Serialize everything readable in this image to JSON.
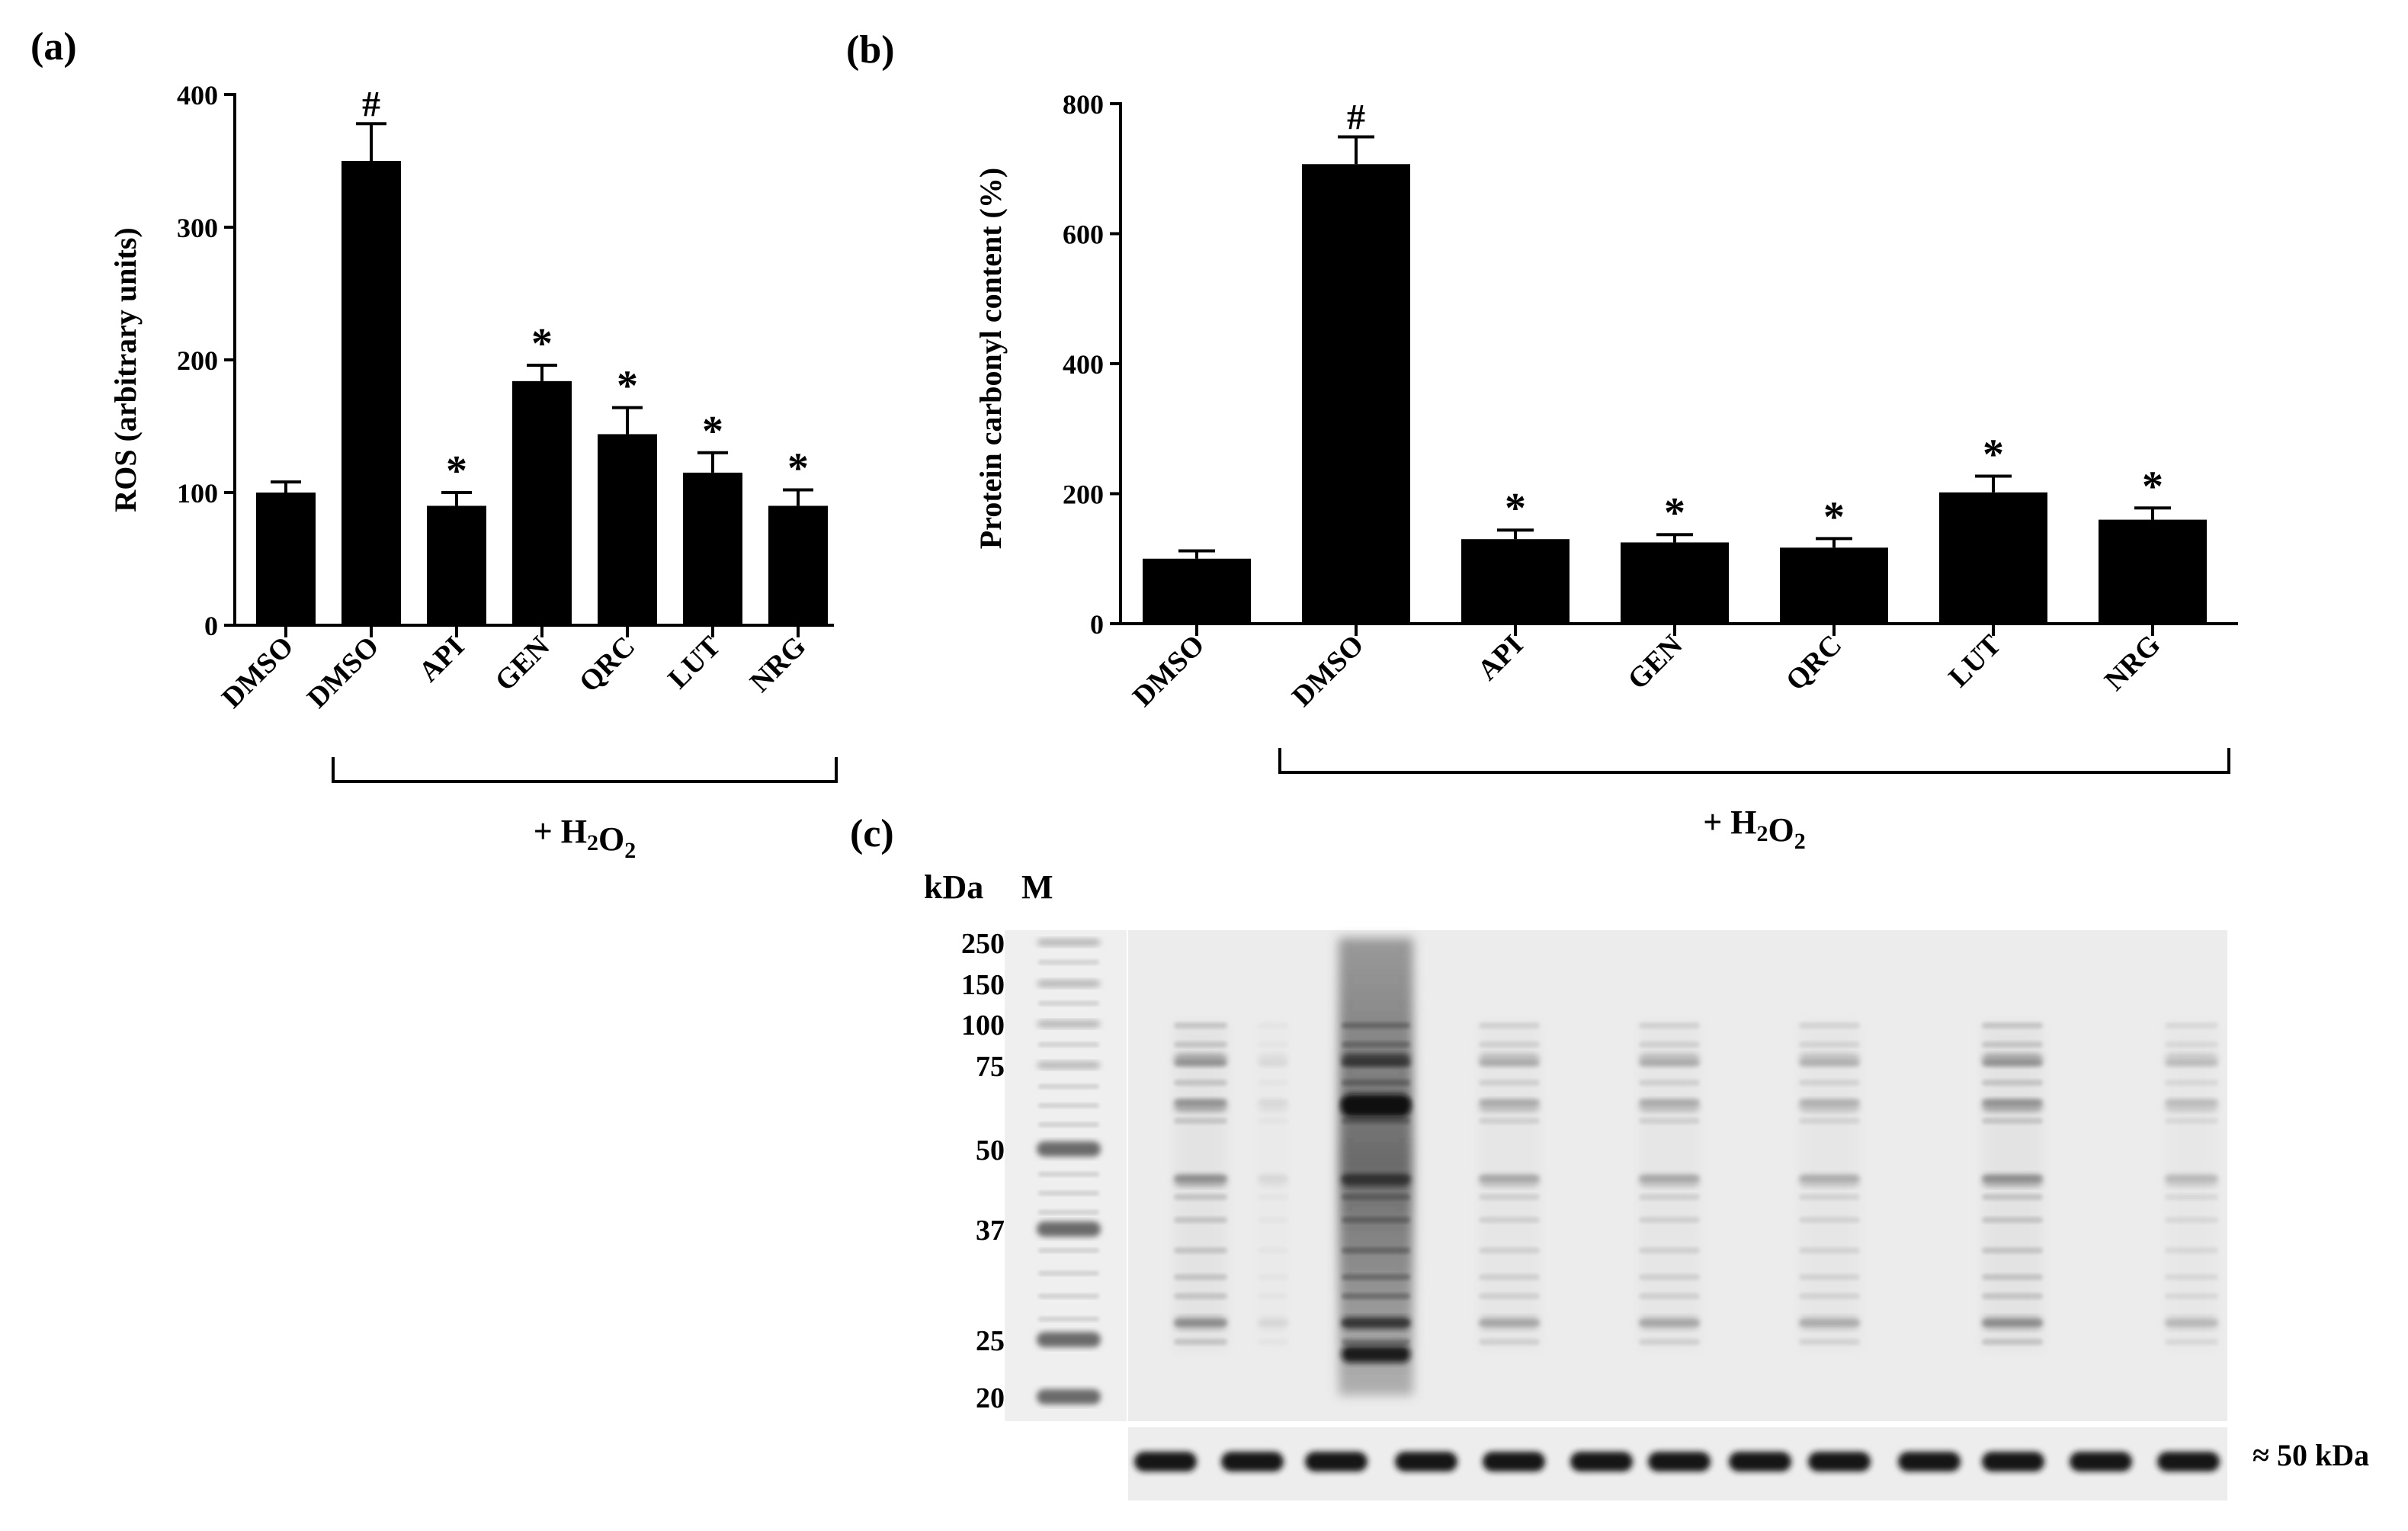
{
  "chart_data": [
    {
      "type": "bar",
      "panel_label": "(a)",
      "ylabel": "ROS (arbitrary units)",
      "ylim": [
        0,
        400
      ],
      "yticks": [
        "0",
        "100",
        "200",
        "300",
        "400"
      ],
      "categories": [
        "DMSO",
        "DMSO",
        "API",
        "GEN",
        "QRC",
        "LUT",
        "NRG"
      ],
      "values": [
        100,
        350,
        90,
        184,
        144,
        115,
        90
      ],
      "errors": [
        8,
        28,
        10,
        12,
        20,
        15,
        12
      ],
      "annotations": [
        "",
        "#",
        "*",
        "*",
        "*",
        "*",
        "*"
      ],
      "bracket_label": "+ H2O2",
      "bracket_from_index": 1
    },
    {
      "type": "bar",
      "panel_label": "(b)",
      "ylabel": "Protein carbonyl content (%)",
      "ylim": [
        0,
        800
      ],
      "yticks": [
        "0",
        "200",
        "400",
        "600",
        "800"
      ],
      "categories": [
        "DMSO",
        "DMSO",
        "API",
        "GEN",
        "QRC",
        "LUT",
        "NRG"
      ],
      "values": [
        100,
        707,
        130,
        125,
        117,
        202,
        160
      ],
      "errors": [
        12,
        42,
        14,
        12,
        14,
        25,
        18
      ],
      "annotations": [
        "",
        "#",
        "*",
        "*",
        "*",
        "*",
        "*"
      ],
      "bracket_label": "+ H2O2",
      "bracket_from_index": 1
    }
  ],
  "blot": {
    "panel_label": "(c)",
    "kda_label": "kDa",
    "marker_label": "M",
    "marker_sizes": [
      "250",
      "150",
      "100",
      "75",
      "50",
      "37",
      "25",
      "20"
    ],
    "loading_band_label": "≈ 50 kDa"
  },
  "colors": {
    "bars": "#000000",
    "blot_bg": "#ececec",
    "band": "#1a1a1a"
  }
}
